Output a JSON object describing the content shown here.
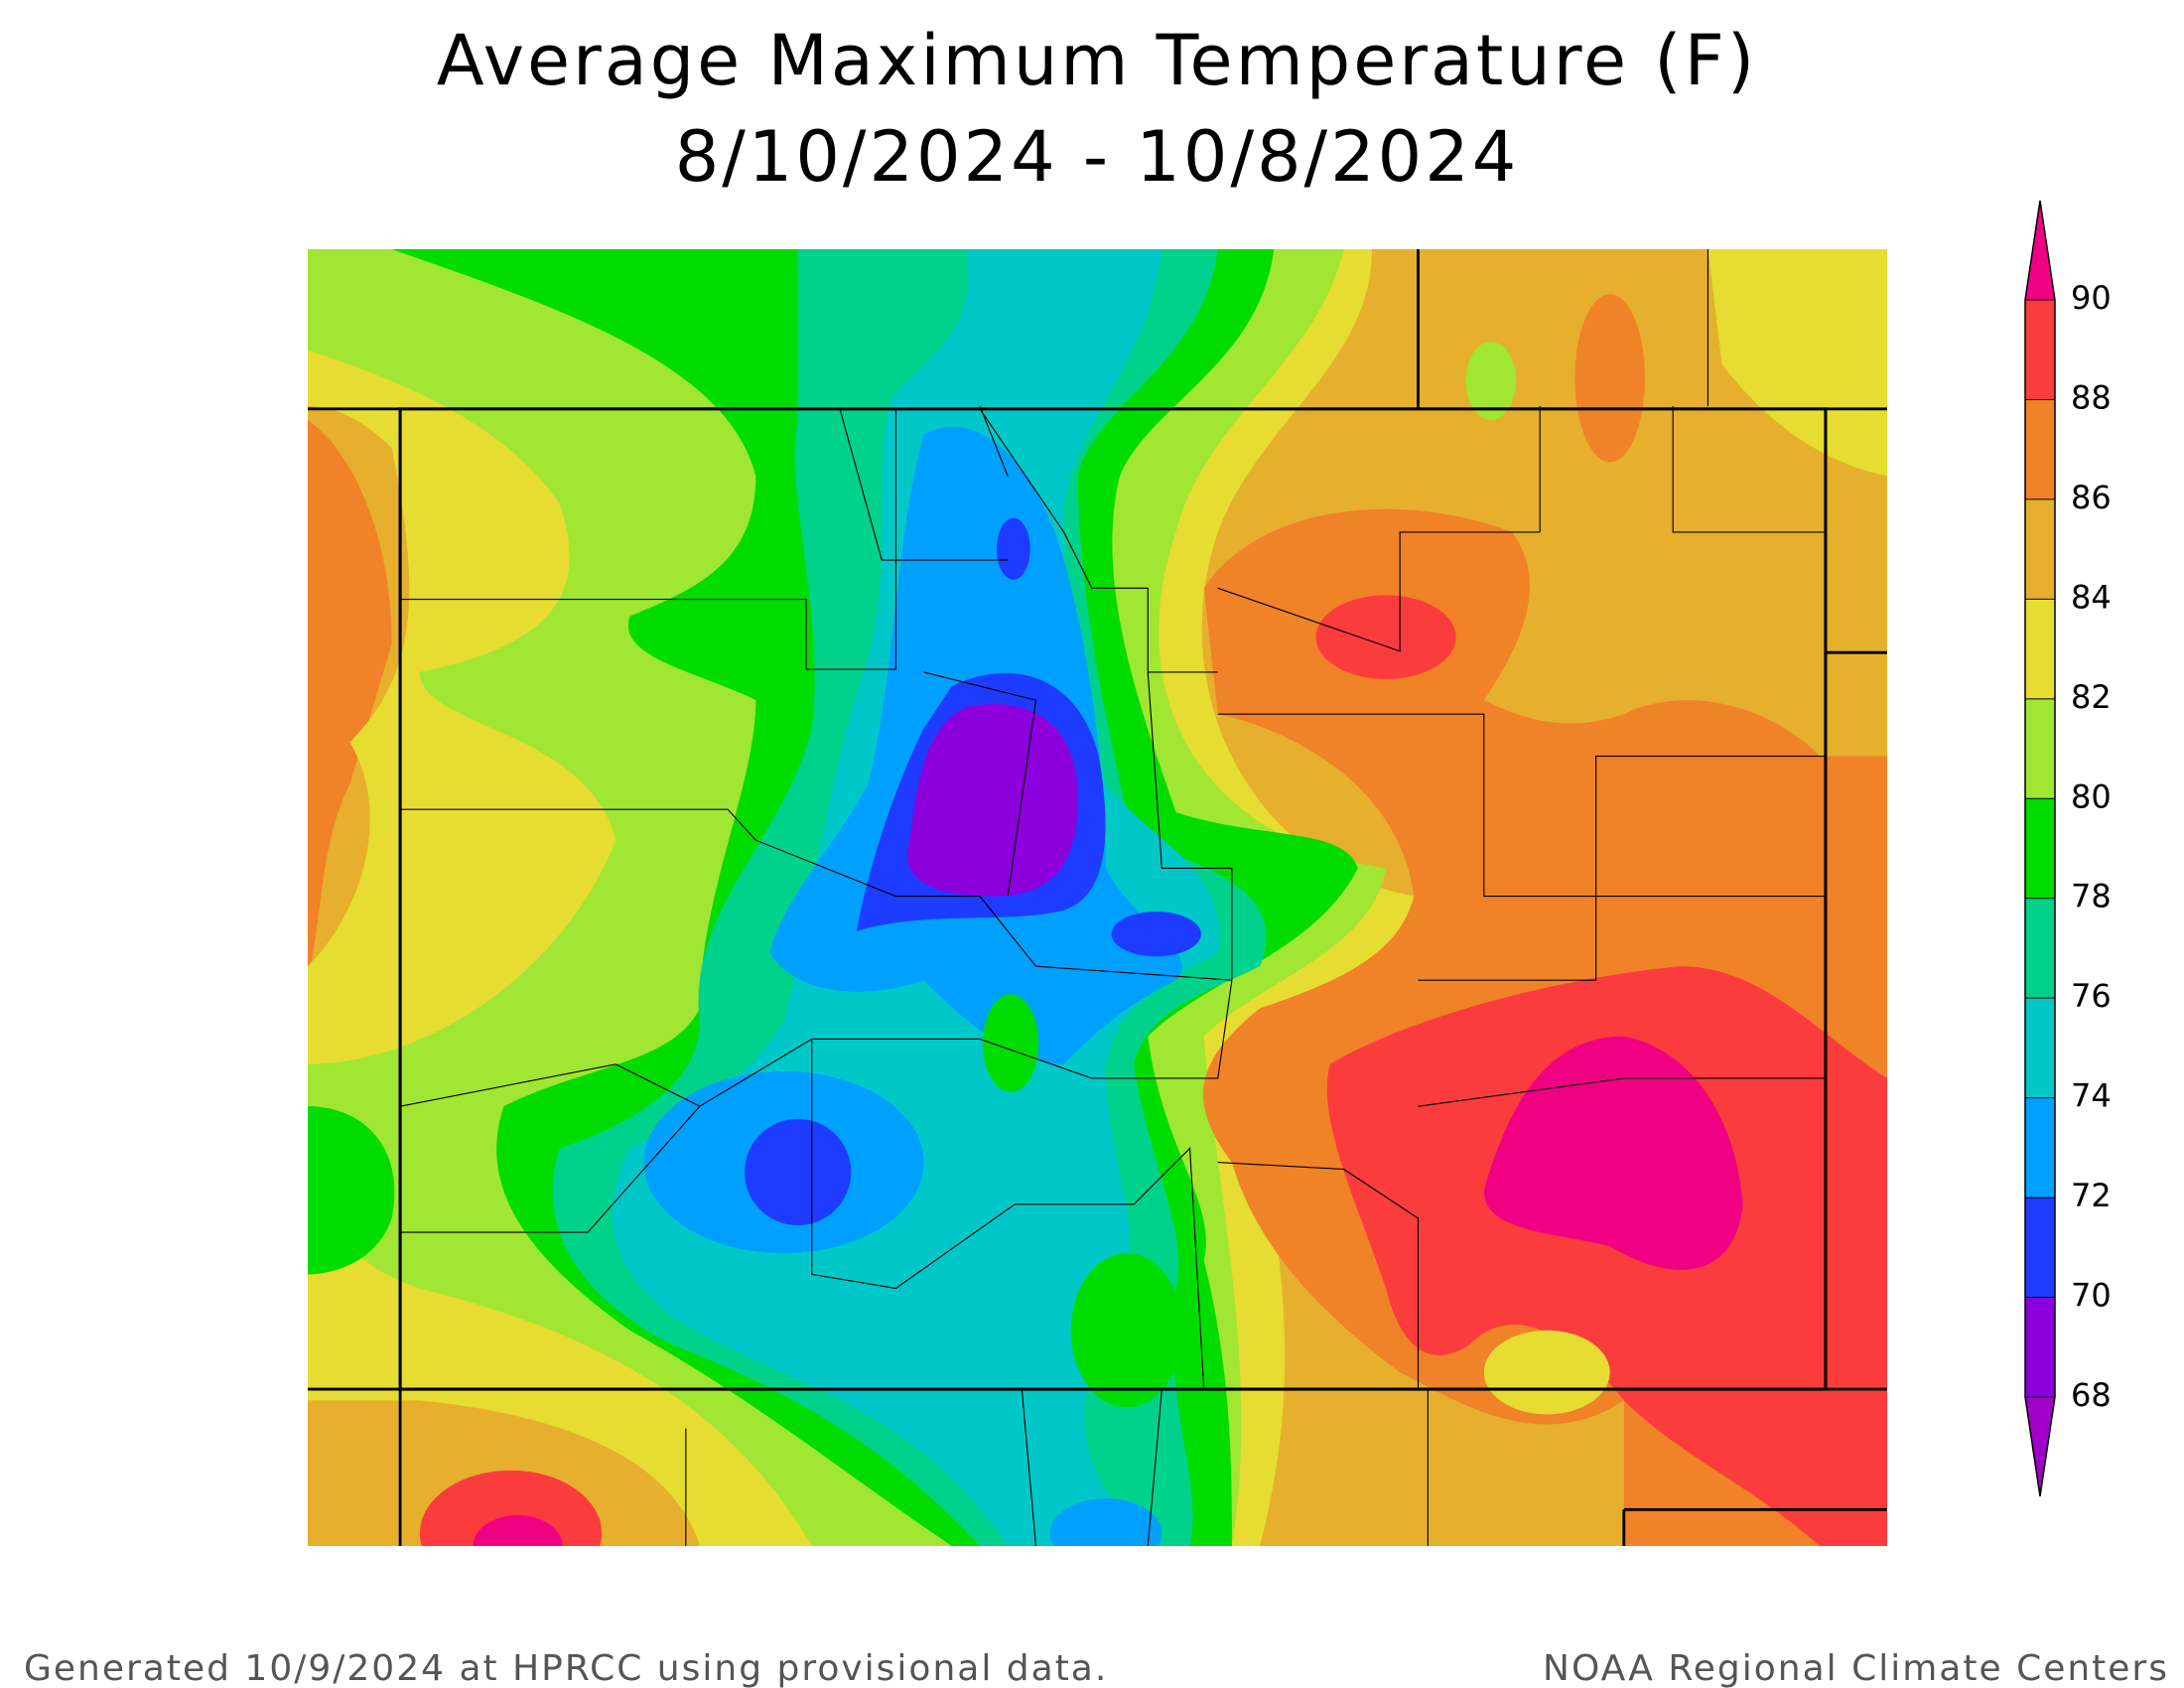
{
  "title": [
    "Average Maximum Temperature (F)",
    "8/10/2024 - 10/8/2024"
  ],
  "legend": {
    "ticks": [
      68,
      70,
      72,
      74,
      76,
      78,
      80,
      82,
      84,
      86,
      88,
      90
    ],
    "colors": [
      "#8c00dc",
      "#1e3cff",
      "#00a0ff",
      "#00c8c8",
      "#00d28c",
      "#00dc00",
      "#a0e632",
      "#e6dc32",
      "#e6af2d",
      "#f08228",
      "#fa3c3c"
    ],
    "under_color": "#a000c8",
    "over_color": "#f00082"
  },
  "footer": {
    "left": "Generated 10/9/2024 at HPRCC using provisional data.",
    "right": "NOAA Regional Climate Centers"
  }
}
